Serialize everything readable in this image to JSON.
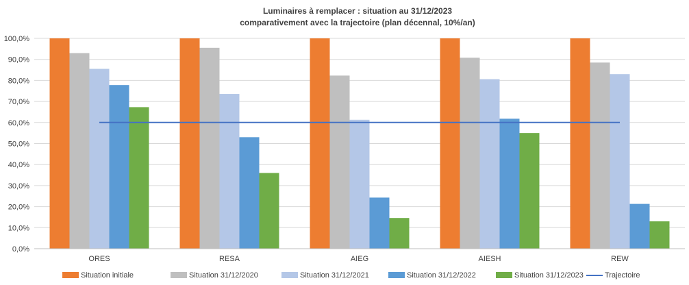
{
  "chart_data": {
    "type": "bar",
    "title": [
      "Luminaires à remplacer : situation au 31/12/2023",
      "comparativement avec la trajectoire (plan décennal, 10%/an)"
    ],
    "categories": [
      "ORES",
      "RESA",
      "AIEG",
      "AIESH",
      "REW"
    ],
    "series": [
      {
        "name": "Situation initiale",
        "color": "#ED7D31",
        "values": [
          100.0,
          100.0,
          100.0,
          100.0,
          100.0
        ]
      },
      {
        "name": "Situation 31/12/2020",
        "color": "#BFBFBF",
        "values": [
          93.0,
          95.5,
          82.3,
          90.8,
          88.5
        ]
      },
      {
        "name": "Situation 31/12/2021",
        "color": "#B4C7E7",
        "values": [
          85.5,
          73.6,
          61.3,
          80.6,
          83.0
        ]
      },
      {
        "name": "Situation 31/12/2022",
        "color": "#5B9BD5",
        "values": [
          77.8,
          53.0,
          24.3,
          61.8,
          21.3
        ]
      },
      {
        "name": "Situation 31/12/2023",
        "color": "#70AD47",
        "values": [
          67.3,
          36.0,
          14.6,
          55.0,
          13.0
        ]
      }
    ],
    "line": {
      "name": "Trajectoire",
      "color": "#4472C4",
      "value": 60.0
    },
    "y_ticks": [
      "0,0%",
      "10,0%",
      "20,0%",
      "30,0%",
      "40,0%",
      "50,0%",
      "60,0%",
      "70,0%",
      "80,0%",
      "90,0%",
      "100,0%"
    ],
    "ylim": [
      0,
      100
    ],
    "grid": true,
    "legend_position": "bottom"
  }
}
